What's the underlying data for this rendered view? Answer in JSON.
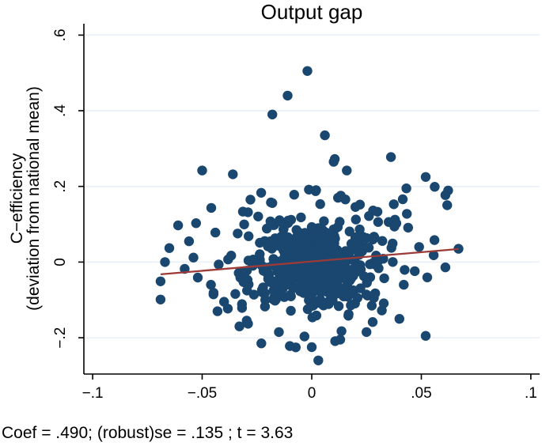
{
  "chart_data": {
    "type": "scatter",
    "title": "Output gap",
    "xlabel": "",
    "ylabel": "C−efficiency (deviation from national mean)",
    "ylabel_line1": "C−efficiency",
    "ylabel_line2": "(deviation from national mean)",
    "caption": "Coef = .490; (robust)se = .135 ; t = 3.63",
    "regression": {
      "coef": 0.49,
      "robust_se": 0.135,
      "t": 3.63
    },
    "xlim": [
      -0.104,
      0.104
    ],
    "ylim": [
      -0.296,
      0.63
    ],
    "x_ticks": {
      "values": [
        -0.1,
        -0.05,
        0,
        0.05,
        0.1
      ],
      "labels": [
        "−.1",
        "−.05",
        "0",
        ".05",
        ".1"
      ]
    },
    "y_ticks": {
      "values": [
        -0.2,
        0,
        0.2,
        0.4,
        0.6
      ],
      "labels": [
        "−.2",
        "0",
        ".2",
        ".4",
        ".6"
      ]
    },
    "grid": "horizontal",
    "legend": "none",
    "colors": {
      "marker": "#1a476f",
      "fit_line": "#9c3a38",
      "grid": "#e9eff6",
      "axis": "#000000",
      "background": "#ffffff"
    },
    "marker": {
      "shape": "circle",
      "radius_px": 6.2
    },
    "fit_line": {
      "x": [
        -0.069,
        0.067
      ],
      "y": [
        -0.0325,
        0.0345
      ]
    },
    "points": [
      [
        -0.002,
        0.505
      ],
      [
        -0.011,
        0.44
      ],
      [
        -0.018,
        0.39
      ],
      [
        0.006,
        0.335
      ],
      [
        0.01,
        0.265
      ],
      [
        0.016,
        0.242
      ],
      [
        -0.05,
        0.242
      ],
      [
        -0.036,
        0.232
      ],
      [
        0.052,
        0.225
      ],
      [
        0.061,
        0.177
      ],
      [
        -0.028,
        0.165
      ],
      [
        -0.018,
        0.156
      ],
      [
        -0.008,
        0.178
      ],
      [
        0.002,
        0.19
      ],
      [
        0.012,
        0.17
      ],
      [
        0.022,
        0.152
      ],
      [
        0.03,
        0.133
      ],
      [
        0.038,
        0.112
      ],
      [
        0.044,
        0.091
      ],
      [
        -0.061,
        0.097
      ],
      [
        -0.056,
        0.055
      ],
      [
        -0.065,
        0.037
      ],
      [
        -0.067,
        0.0
      ],
      [
        -0.069,
        -0.051
      ],
      [
        -0.069,
        -0.099
      ],
      [
        -0.052,
        -0.041
      ],
      [
        -0.046,
        -0.06
      ],
      [
        -0.058,
        -0.018
      ],
      [
        -0.054,
        0.012
      ],
      [
        -0.044,
        0.078
      ],
      [
        -0.04,
        -0.105
      ],
      [
        0.056,
        0.058
      ],
      [
        0.067,
        0.035
      ],
      [
        0.061,
        -0.014
      ],
      [
        0.047,
        -0.024
      ],
      [
        0.049,
        0.04
      ],
      [
        0.042,
        -0.06
      ],
      [
        0.052,
        -0.195
      ],
      [
        0.04,
        -0.15
      ],
      [
        0.003,
        -0.26
      ],
      [
        0.0,
        -0.225
      ],
      [
        -0.01,
        -0.222
      ],
      [
        -0.023,
        -0.215
      ],
      [
        0.013,
        -0.205
      ],
      [
        0.025,
        -0.185
      ],
      [
        -0.033,
        -0.17
      ],
      [
        -0.043,
        -0.13
      ],
      [
        -0.015,
        -0.185
      ],
      [
        0.032,
        -0.128
      ]
    ],
    "point_clusters": [
      {
        "n": 330,
        "cx": 0.002,
        "cy": -0.012,
        "sx": 0.0125,
        "sy": 0.052
      },
      {
        "n": 130,
        "cx": 0.0,
        "cy": 0.004,
        "sx": 0.02,
        "sy": 0.085
      },
      {
        "n": 55,
        "cx": 0.001,
        "cy": 0.0,
        "sx": 0.026,
        "sy": 0.118
      }
    ],
    "cluster_seed": 20110613
  }
}
